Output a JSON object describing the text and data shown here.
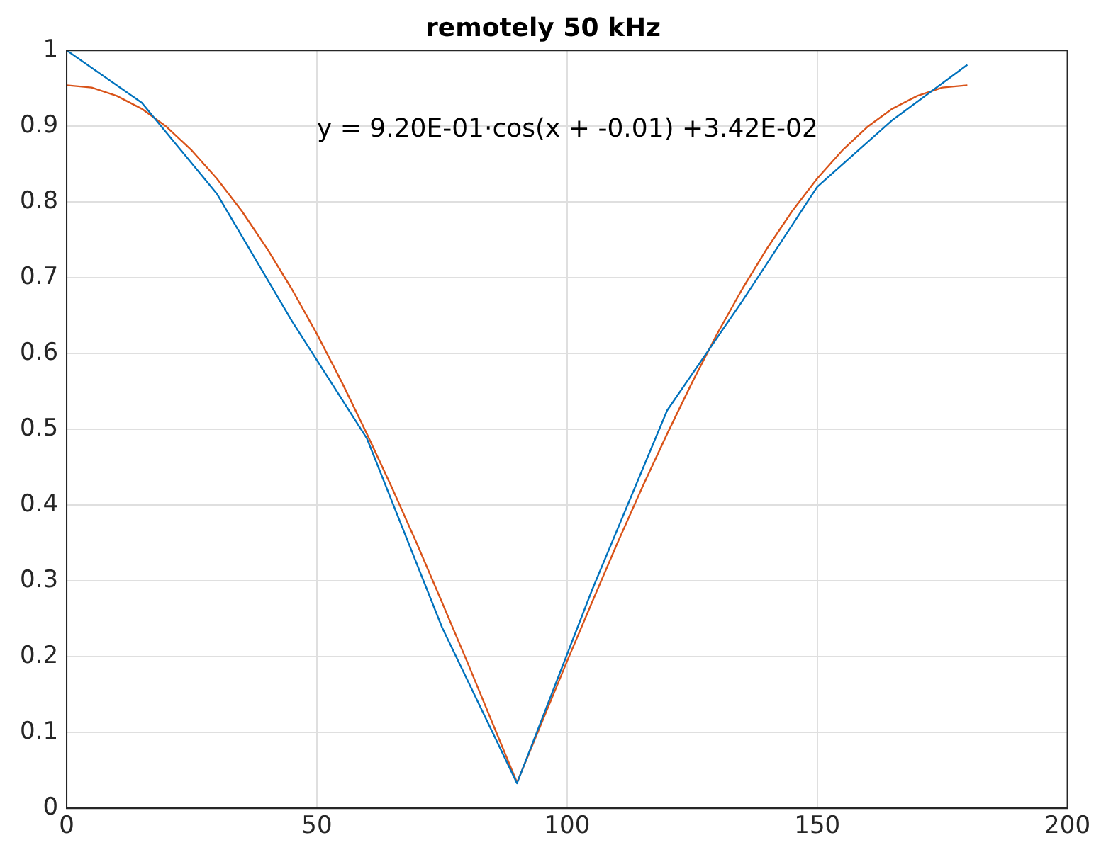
{
  "chart_data": {
    "type": "line",
    "title": "remotely 50 kHz",
    "xlim": [
      0,
      200
    ],
    "xticks": [
      0,
      50,
      100,
      150,
      200
    ],
    "ylim": [
      0,
      1
    ],
    "yticks": [
      0,
      0.1,
      0.2,
      0.3,
      0.4,
      0.5,
      0.6,
      0.7,
      0.8,
      0.9,
      1
    ],
    "grid": true,
    "legend": false,
    "marker": "none",
    "line_style": "solid",
    "annotations": [
      "y = 9.20E-01·cos(x + -0.01) +3.42E-02"
    ],
    "series": [
      {
        "color": "#0072bd",
        "x": [
          0,
          15,
          30,
          45,
          60,
          75,
          90,
          105,
          120,
          135,
          150,
          165,
          180
        ],
        "values": [
          1.0,
          0.931,
          0.811,
          0.643,
          0.488,
          0.239,
          0.033,
          0.288,
          0.525,
          0.669,
          0.82,
          0.908,
          0.981
        ]
      },
      {
        "color": "#d95319",
        "x": [
          0,
          5,
          10,
          15,
          20,
          25,
          30,
          35,
          40,
          45,
          50,
          55,
          60,
          65,
          70,
          75,
          80,
          85,
          90,
          95,
          100,
          105,
          110,
          115,
          120,
          125,
          130,
          135,
          140,
          145,
          150,
          155,
          160,
          165,
          170,
          175,
          180
        ],
        "values": [
          0.954,
          0.951,
          0.94,
          0.923,
          0.899,
          0.868,
          0.831,
          0.788,
          0.739,
          0.685,
          0.626,
          0.562,
          0.494,
          0.423,
          0.349,
          0.272,
          0.194,
          0.114,
          0.034,
          0.114,
          0.194,
          0.272,
          0.349,
          0.423,
          0.494,
          0.562,
          0.626,
          0.685,
          0.739,
          0.788,
          0.831,
          0.868,
          0.899,
          0.923,
          0.94,
          0.951,
          0.954
        ]
      }
    ]
  }
}
